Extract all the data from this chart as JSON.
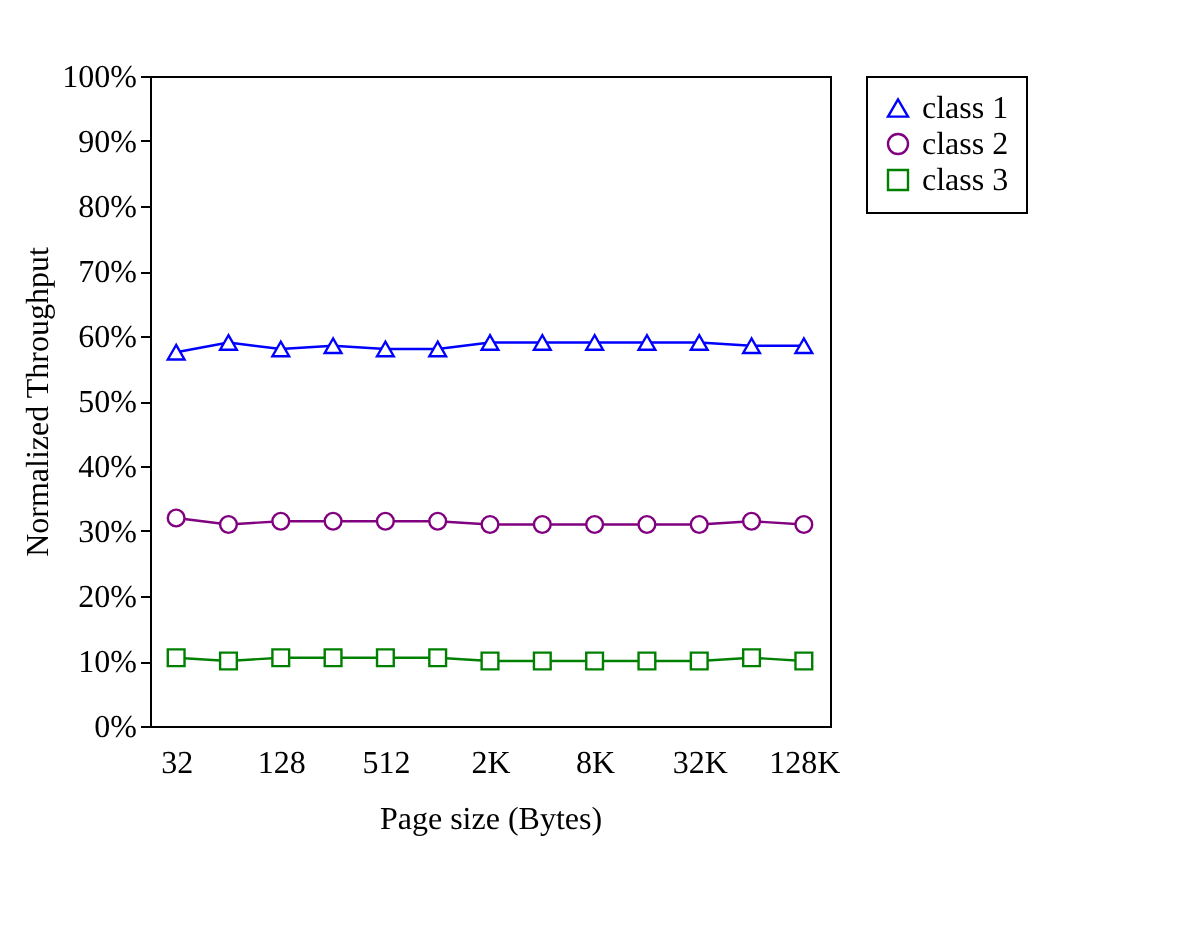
{
  "chart_data": {
    "type": "line",
    "xlabel": "Page size (Bytes)",
    "ylabel": "Normalized Throughput",
    "categories": [
      "32",
      null,
      "128",
      null,
      "512",
      null,
      "2K",
      null,
      "8K",
      null,
      "32K",
      null,
      "128K"
    ],
    "series": [
      {
        "name": "class 1",
        "color": "#0000ff",
        "marker": "triangle",
        "values": [
          57.5,
          59,
          58,
          58.5,
          58,
          58,
          59,
          59,
          59,
          59,
          59,
          58.5,
          58.5
        ]
      },
      {
        "name": "class 2",
        "color": "#800080",
        "marker": "circle",
        "values": [
          32,
          31,
          31.5,
          31.5,
          31.5,
          31.5,
          31,
          31,
          31,
          31,
          31,
          31.5,
          31
        ]
      },
      {
        "name": "class 3",
        "color": "#008000",
        "marker": "square",
        "values": [
          10.5,
          10,
          10.5,
          10.5,
          10.5,
          10.5,
          10,
          10,
          10,
          10,
          10,
          10.5,
          10
        ]
      }
    ],
    "ylim": [
      0,
      100
    ],
    "yticks": [
      {
        "value": 0,
        "label": "0%"
      },
      {
        "value": 10,
        "label": "10%"
      },
      {
        "value": 20,
        "label": "20%"
      },
      {
        "value": 30,
        "label": "30%"
      },
      {
        "value": 40,
        "label": "40%"
      },
      {
        "value": 50,
        "label": "50%"
      },
      {
        "value": 60,
        "label": "60%"
      },
      {
        "value": 70,
        "label": "70%"
      },
      {
        "value": 80,
        "label": "80%"
      },
      {
        "value": 90,
        "label": "90%"
      },
      {
        "value": 100,
        "label": "100%"
      }
    ],
    "grid": false,
    "legend": "right",
    "line_style": "solid"
  }
}
